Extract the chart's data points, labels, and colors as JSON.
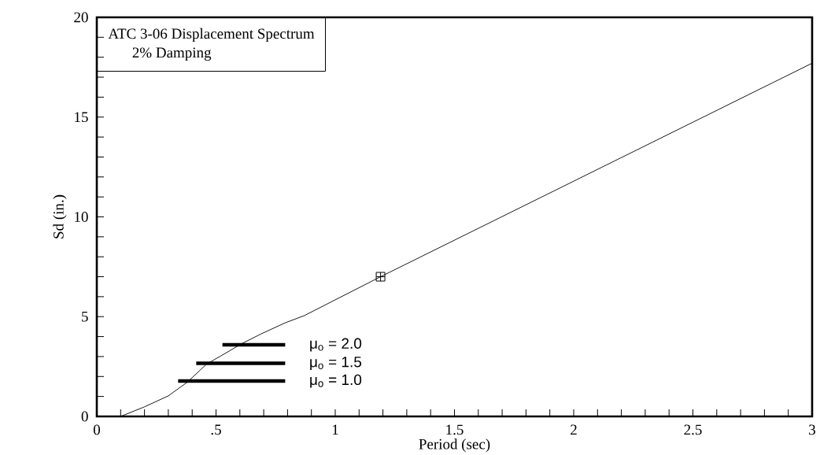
{
  "chart_data": {
    "type": "line",
    "title": "ATC 3-06 Displacement Spectrum",
    "subtitle": "2% Damping",
    "xlabel": "Period (sec)",
    "ylabel": "Sd (in.)",
    "xlim": [
      0,
      3
    ],
    "ylim": [
      0,
      20
    ],
    "xticks": [
      0,
      {
        "value": 0.1,
        "label": null
      },
      {
        "value": 0.2,
        "label": null
      },
      {
        "value": 0.3,
        "label": null
      },
      {
        "value": 0.4,
        "label": null
      },
      {
        "value": 0.5,
        "label": ".5"
      },
      {
        "value": 0.6,
        "label": null
      },
      {
        "value": 0.7,
        "label": null
      },
      {
        "value": 0.8,
        "label": null
      },
      {
        "value": 0.9,
        "label": null
      },
      1,
      {
        "value": 1.1,
        "label": null
      },
      {
        "value": 1.2,
        "label": null
      },
      {
        "value": 1.3,
        "label": null
      },
      {
        "value": 1.4,
        "label": null
      },
      1.5,
      {
        "value": 1.6,
        "label": null
      },
      {
        "value": 1.7,
        "label": null
      },
      {
        "value": 1.8,
        "label": null
      },
      {
        "value": 1.9,
        "label": null
      },
      2,
      {
        "value": 2.1,
        "label": null
      },
      {
        "value": 2.2,
        "label": null
      },
      {
        "value": 2.3,
        "label": null
      },
      {
        "value": 2.4,
        "label": null
      },
      2.5,
      {
        "value": 2.6,
        "label": null
      },
      {
        "value": 2.7,
        "label": null
      },
      {
        "value": 2.8,
        "label": null
      },
      {
        "value": 2.9,
        "label": null
      },
      3
    ],
    "yticks": [
      0,
      {
        "value": 1,
        "label": null
      },
      {
        "value": 2,
        "label": null
      },
      {
        "value": 3,
        "label": null
      },
      {
        "value": 4,
        "label": null
      },
      5,
      {
        "value": 6,
        "label": null
      },
      {
        "value": 7,
        "label": null
      },
      {
        "value": 8,
        "label": null
      },
      {
        "value": 9,
        "label": null
      },
      10,
      {
        "value": 11,
        "label": null
      },
      {
        "value": 12,
        "label": null
      },
      {
        "value": 13,
        "label": null
      },
      {
        "value": 14,
        "label": null
      },
      15,
      {
        "value": 16,
        "label": null
      },
      {
        "value": 17,
        "label": null
      },
      {
        "value": 18,
        "label": null
      },
      {
        "value": 19,
        "label": null
      },
      20
    ],
    "series": [
      {
        "color": "#000000",
        "marker": "none",
        "x": [
          0.1,
          0.2,
          0.3,
          0.38,
          0.46,
          0.52,
          0.61,
          0.69,
          0.79,
          0.87,
          1.19,
          3
        ],
        "values": [
          0,
          0.48,
          1.03,
          1.72,
          2.62,
          3.03,
          3.66,
          4.14,
          4.69,
          5.05,
          7.0,
          17.7
        ]
      },
      {
        "name": "μ$_{o}$ = 2.0",
        "color": "#000000",
        "marker": "none",
        "x": [
          0.527,
          0.79
        ],
        "values": [
          3.59,
          3.59
        ]
      },
      {
        "name": "μ$_{o}$ = 1.5",
        "color": "#000000",
        "marker": "none",
        "x": [
          0.417,
          0.79
        ],
        "values": [
          2.66,
          2.66
        ]
      },
      {
        "name": "μ$_{o}$ = 1.0",
        "color": "#000000",
        "marker": "none",
        "x": [
          0.341,
          0.79
        ],
        "values": [
          1.77,
          1.77
        ]
      },
      {
        "type": "scatter",
        "color": "#000000",
        "marker": "square",
        "x": [
          1.19
        ],
        "values": [
          7.0
        ]
      }
    ]
  }
}
